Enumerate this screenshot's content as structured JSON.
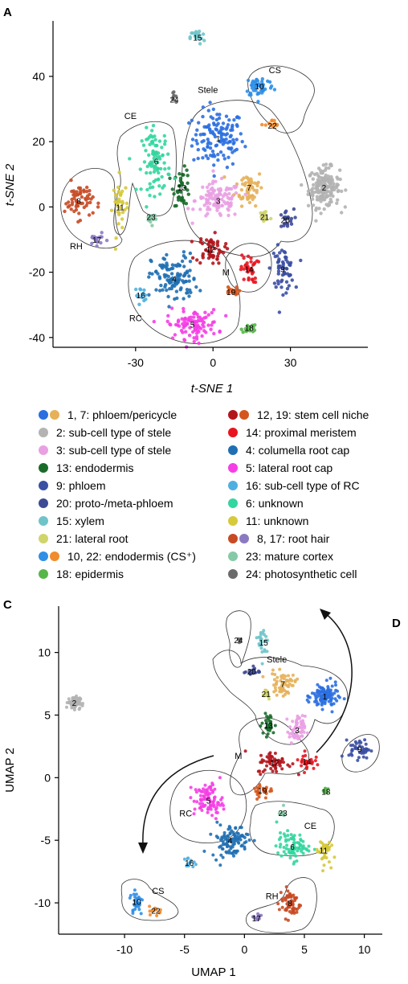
{
  "panel_labels": {
    "a": "A",
    "c": "C",
    "d": "D"
  },
  "colors": {
    "c1": "#2b6fe0",
    "c7": "#e6b15a",
    "c2": "#b3b3b3",
    "c3": "#e9a0e3",
    "c13": "#1a6b2a",
    "c9": "#3b4fa3",
    "c20": "#3d4a96",
    "c15": "#6fc4c9",
    "c21": "#cfd56a",
    "c10": "#2f8ee6",
    "c22": "#f08c2e",
    "c18": "#57b64a",
    "c12": "#b3151c",
    "c19": "#d4561e",
    "c14": "#e8151f",
    "c4": "#1f6fb2",
    "c5": "#f53ee6",
    "c16": "#4fb0e0",
    "c6": "#33d6a0",
    "c11": "#d6c93a",
    "c8": "#c74a24",
    "c17": "#8b7ac2",
    "c23": "#86c9a6",
    "c24": "#6b6b6b"
  },
  "legend": {
    "left": [
      {
        "label": "1, 7: phloem/pericycle",
        "colors": [
          "#2b6fe0",
          "#e6b15a"
        ]
      },
      {
        "label": "2: sub-cell type of stele",
        "colors": [
          "#b3b3b3"
        ]
      },
      {
        "label": "3: sub-cell type of stele",
        "colors": [
          "#e9a0e3"
        ]
      },
      {
        "label": "13: endodermis",
        "colors": [
          "#1a6b2a"
        ]
      },
      {
        "label": "9: phloem",
        "colors": [
          "#3b4fa3"
        ]
      },
      {
        "label": "20: proto-/meta-phloem",
        "colors": [
          "#3d4a96"
        ]
      },
      {
        "label": "15: xylem",
        "colors": [
          "#6fc4c9"
        ]
      },
      {
        "label": "21: lateral root",
        "colors": [
          "#cfd56a"
        ]
      },
      {
        "label": "10,  22: endodermis (CS⁺)",
        "colors": [
          "#2f8ee6",
          "#f08c2e"
        ]
      },
      {
        "label": "18: epidermis",
        "colors": [
          "#57b64a"
        ]
      }
    ],
    "right": [
      {
        "label": "12, 19: stem cell niche",
        "colors": [
          "#b3151c",
          "#d4561e"
        ]
      },
      {
        "label": "14: proximal meristem",
        "colors": [
          "#e8151f"
        ]
      },
      {
        "label": "4: columella root cap",
        "colors": [
          "#1f6fb2"
        ]
      },
      {
        "label": "5: lateral root cap",
        "colors": [
          "#f53ee6"
        ]
      },
      {
        "label": "16: sub-cell type of RC",
        "colors": [
          "#4fb0e0"
        ]
      },
      {
        "label": "6: unknown",
        "colors": [
          "#33d6a0"
        ]
      },
      {
        "label": "11: unknown",
        "colors": [
          "#d6c93a"
        ]
      },
      {
        "label": "8, 17: root hair",
        "colors": [
          "#c74a24",
          "#8b7ac2"
        ]
      },
      {
        "label": "23: mature cortex",
        "colors": [
          "#86c9a6"
        ]
      },
      {
        "label": "24: photosynthetic cell",
        "colors": [
          "#6b6b6b"
        ]
      }
    ]
  },
  "chart_data": [
    {
      "type": "scatter",
      "title": "",
      "xlabel": "t-SNE 1",
      "ylabel": "t-SNE 2",
      "xlim": [
        -62,
        60
      ],
      "ylim": [
        -43,
        57
      ],
      "xticks": [
        -30,
        0,
        30
      ],
      "yticks": [
        -40,
        -20,
        0,
        20,
        40
      ],
      "xtick_labels": [
        "-30",
        "0",
        "30"
      ],
      "ytick_labels": [
        "-40",
        "-20",
        "0",
        "20",
        "40"
      ],
      "regions": [
        {
          "label": "Stele",
          "x": -2,
          "y": 35
        },
        {
          "label": "CS",
          "x": 24,
          "y": 41
        },
        {
          "label": "CE",
          "x": -32,
          "y": 27
        },
        {
          "label": "RH",
          "x": -53,
          "y": -13
        },
        {
          "label": "M",
          "x": 5,
          "y": -21
        },
        {
          "label": "RC",
          "x": -30,
          "y": -35
        }
      ],
      "clusters": [
        {
          "id": "1",
          "cx": 2,
          "cy": 21,
          "sx": 9,
          "sy": 8,
          "n": 130
        },
        {
          "id": "7",
          "cx": 14,
          "cy": 6,
          "sx": 5,
          "sy": 5,
          "n": 55
        },
        {
          "id": "2",
          "cx": 43,
          "cy": 6,
          "sx": 5.5,
          "sy": 5.5,
          "n": 170
        },
        {
          "id": "3",
          "cx": 2,
          "cy": 2,
          "sx": 8,
          "sy": 5,
          "n": 110
        },
        {
          "id": "13",
          "cx": -12,
          "cy": 6,
          "sx": 3,
          "sy": 5,
          "n": 40
        },
        {
          "id": "9",
          "cx": 27,
          "cy": -19,
          "sx": 4,
          "sy": 6,
          "n": 60
        },
        {
          "id": "20",
          "cx": 28,
          "cy": -4,
          "sx": 3,
          "sy": 3,
          "n": 20
        },
        {
          "id": "15",
          "cx": -6,
          "cy": 52,
          "sx": 2.5,
          "sy": 2,
          "n": 20
        },
        {
          "id": "21",
          "cx": 20,
          "cy": -3,
          "sx": 2.5,
          "sy": 2.5,
          "n": 18
        },
        {
          "id": "10",
          "cx": 18,
          "cy": 37,
          "sx": 5,
          "sy": 3,
          "n": 50
        },
        {
          "id": "22",
          "cx": 23,
          "cy": 25,
          "sx": 2.5,
          "sy": 1.5,
          "n": 15
        },
        {
          "id": "18",
          "cx": 14,
          "cy": -37,
          "sx": 2.5,
          "sy": 1.5,
          "n": 18
        },
        {
          "id": "12",
          "cx": -1,
          "cy": -13,
          "sx": 5,
          "sy": 4,
          "n": 55
        },
        {
          "id": "19",
          "cx": 7,
          "cy": -26,
          "sx": 2.5,
          "sy": 1.5,
          "n": 15
        },
        {
          "id": "14",
          "cx": 14,
          "cy": -19,
          "sx": 3,
          "sy": 4,
          "n": 35
        },
        {
          "id": "4",
          "cx": -15,
          "cy": -22,
          "sx": 8,
          "sy": 7,
          "n": 110
        },
        {
          "id": "5",
          "cx": -8,
          "cy": -36,
          "sx": 9,
          "sy": 4,
          "n": 100
        },
        {
          "id": "16",
          "cx": -28,
          "cy": -27,
          "sx": 2,
          "sy": 2,
          "n": 15
        },
        {
          "id": "6",
          "cx": -22,
          "cy": 14,
          "sx": 5,
          "sy": 9,
          "n": 90
        },
        {
          "id": "11",
          "cx": -36,
          "cy": 0,
          "sx": 2.5,
          "sy": 8,
          "n": 35
        },
        {
          "id": "8",
          "cx": -52,
          "cy": 2,
          "sx": 5,
          "sy": 5,
          "n": 60
        },
        {
          "id": "17",
          "cx": -45,
          "cy": -10,
          "sx": 3,
          "sy": 1.5,
          "n": 18
        },
        {
          "id": "23",
          "cx": -24,
          "cy": -3,
          "sx": 2,
          "sy": 2,
          "n": 15
        },
        {
          "id": "24",
          "cx": -15,
          "cy": 33,
          "sx": 0.8,
          "sy": 1.5,
          "n": 8
        }
      ]
    },
    {
      "type": "scatter",
      "title": "",
      "xlabel": "UMAP 1",
      "ylabel": "UMAP 2",
      "xlim": [
        -15.5,
        11.5
      ],
      "ylim": [
        -12.5,
        13.7
      ],
      "xticks": [
        -10,
        -5,
        0,
        5,
        10
      ],
      "yticks": [
        -10,
        -5,
        0,
        5,
        10
      ],
      "xtick_labels": [
        "-10",
        "-5",
        "0",
        "5",
        "10"
      ],
      "ytick_labels": [
        "-10",
        "-5",
        "0",
        "5",
        "10"
      ],
      "regions": [
        {
          "label": "Stele",
          "x": 2.7,
          "y": 9.2
        },
        {
          "label": "M",
          "x": -0.5,
          "y": 1.5
        },
        {
          "label": "RC",
          "x": -4.9,
          "y": -3.1
        },
        {
          "label": "CE",
          "x": 5.5,
          "y": -4.1
        },
        {
          "label": "CS",
          "x": -7.2,
          "y": -9.3
        },
        {
          "label": "RH",
          "x": 2.3,
          "y": -9.7
        }
      ],
      "clusters": [
        {
          "id": "1",
          "cx": 6.7,
          "cy": 6.5,
          "sx": 1,
          "sy": 0.9,
          "n": 110
        },
        {
          "id": "7",
          "cx": 3.2,
          "cy": 7.5,
          "sx": 1,
          "sy": 0.8,
          "n": 60
        },
        {
          "id": "2",
          "cx": -14.2,
          "cy": 6,
          "sx": 0.45,
          "sy": 0.45,
          "n": 90
        },
        {
          "id": "3",
          "cx": 4.4,
          "cy": 3.8,
          "sx": 0.6,
          "sy": 1,
          "n": 60
        },
        {
          "id": "13",
          "cx": 2,
          "cy": 4.2,
          "sx": 0.5,
          "sy": 0.8,
          "n": 35
        },
        {
          "id": "9",
          "cx": 9.6,
          "cy": 2.3,
          "sx": 0.8,
          "sy": 0.7,
          "n": 45
        },
        {
          "id": "20",
          "cx": 0.6,
          "cy": 8.5,
          "sx": 0.6,
          "sy": 0.35,
          "n": 18
        },
        {
          "id": "15",
          "cx": 1.6,
          "cy": 10.8,
          "sx": 0.4,
          "sy": 1.3,
          "n": 25
        },
        {
          "id": "21",
          "cx": 1.8,
          "cy": 6.7,
          "sx": 0.4,
          "sy": 0.4,
          "n": 15
        },
        {
          "id": "10",
          "cx": -9,
          "cy": -9.9,
          "sx": 0.5,
          "sy": 1,
          "n": 30
        },
        {
          "id": "22",
          "cx": -7.4,
          "cy": -10.6,
          "sx": 0.5,
          "sy": 0.3,
          "n": 15
        },
        {
          "id": "18",
          "cx": 6.8,
          "cy": -1.1,
          "sx": 0.3,
          "sy": 0.3,
          "n": 10
        },
        {
          "id": "12",
          "cx": 2.5,
          "cy": 1.2,
          "sx": 1.3,
          "sy": 0.8,
          "n": 55
        },
        {
          "id": "19",
          "cx": 1.5,
          "cy": -1,
          "sx": 0.8,
          "sy": 0.6,
          "n": 25
        },
        {
          "id": "14",
          "cx": 5.2,
          "cy": 1.3,
          "sx": 0.6,
          "sy": 0.6,
          "n": 30
        },
        {
          "id": "4",
          "cx": -1.2,
          "cy": -5,
          "sx": 1.4,
          "sy": 1.2,
          "n": 100
        },
        {
          "id": "5",
          "cx": -3,
          "cy": -1.8,
          "sx": 1.1,
          "sy": 1.2,
          "n": 90
        },
        {
          "id": "16",
          "cx": -4.6,
          "cy": -6.8,
          "sx": 0.4,
          "sy": 0.4,
          "n": 12
        },
        {
          "id": "6",
          "cx": 4,
          "cy": -5.5,
          "sx": 1.2,
          "sy": 1,
          "n": 75
        },
        {
          "id": "11",
          "cx": 6.6,
          "cy": -5.8,
          "sx": 0.5,
          "sy": 1,
          "n": 40
        },
        {
          "id": "8",
          "cx": 3.8,
          "cy": -10,
          "sx": 0.8,
          "sy": 1.1,
          "n": 60
        },
        {
          "id": "17",
          "cx": 1,
          "cy": -11.2,
          "sx": 0.5,
          "sy": 0.3,
          "n": 15
        },
        {
          "id": "23",
          "cx": 3.2,
          "cy": -2.8,
          "sx": 0.3,
          "sy": 0.3,
          "n": 8
        },
        {
          "id": "24",
          "cx": -0.5,
          "cy": 11,
          "sx": 0.2,
          "sy": 0.2,
          "n": 6
        }
      ]
    }
  ]
}
